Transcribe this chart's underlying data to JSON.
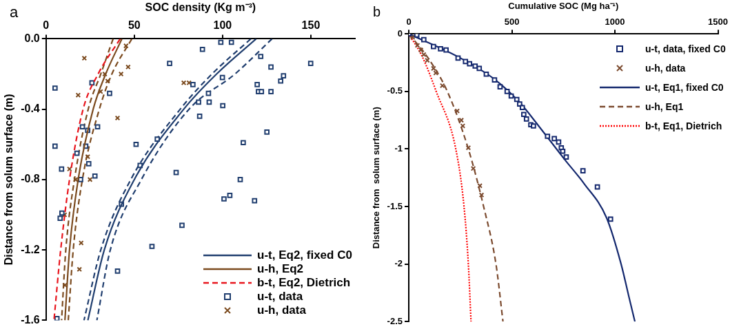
{
  "chart_data": [
    {
      "type": "scatter",
      "xlabel": "SOC density (Kg m⁻³)",
      "ylabel": "Distance from solum surface (m)",
      "annotations": [
        "a"
      ],
      "xlim": [
        0,
        175
      ],
      "xticks": [
        0,
        50,
        100,
        150
      ],
      "ylim": [
        -1.6,
        0
      ],
      "yticks": [
        {
          "value": 0,
          "label": "0.0"
        },
        -0.4,
        -0.8,
        -1.2,
        -1.6
      ],
      "legend": "bottom right",
      "series": [
        {
          "type": "line",
          "name": "u-t, Eq2, fixed C0",
          "color": "#1f3d6e",
          "marker": "none",
          "line_style": "solid",
          "x": [
            119,
            96.6,
            78,
            50,
            33,
            23.7
          ],
          "values": [
            0,
            -0.2,
            -0.4,
            -0.8,
            -1.2,
            -1.6
          ]
        },
        {
          "type": "line",
          "name": "u-h, Eq2",
          "color": "#7b4a1e",
          "marker": "none",
          "line_style": "solid",
          "x": [
            43,
            33.8,
            26.7,
            18.2,
            13.3,
            10.7
          ],
          "values": [
            0,
            -0.2,
            -0.4,
            -0.8,
            -1.2,
            -1.6
          ]
        },
        {
          "type": "line",
          "name": "b-t, Eq2, Dietrich",
          "color": "#e8141c",
          "marker": "none",
          "line_style": "dashed",
          "x": [
            42,
            29.5,
            21,
            13.3,
            8.3,
            4.5
          ],
          "values": [
            0,
            -0.2,
            -0.4,
            -0.8,
            -1.2,
            -1.6
          ]
        },
        {
          "type": "scatter",
          "name": "u-t, data",
          "color": "#1f3d6e",
          "marker": "square",
          "x": [
            5.1,
            26,
            36,
            70,
            20.6,
            23.6,
            29.2,
            5.1,
            22.5,
            17.5,
            51,
            63,
            8.8,
            24.2,
            53.3,
            73.7,
            19.6,
            27.7,
            42.7,
            9,
            8,
            77,
            60,
            40.5,
            6.2,
            99,
            105,
            88.6,
            121.6,
            149.9,
            127.4,
            99.9,
            134.5,
            132.9,
            83.2,
            119.6,
            120.3,
            122,
            127.4,
            92,
            86.4,
            92.4,
            100.1,
            87,
            125.1,
            111.7,
            110,
            100.8,
            104.1,
            118.1
          ],
          "values": [
            -0.28,
            -0.25,
            -0.31,
            -0.14,
            -0.5,
            -0.52,
            -0.5,
            -0.61,
            -0.61,
            -0.65,
            -0.6,
            -0.57,
            -0.74,
            -0.71,
            -0.72,
            -0.76,
            -0.8,
            -0.78,
            -0.94,
            -0.99,
            -1.02,
            -1.06,
            -1.18,
            -1.32,
            -1.59,
            -0.02,
            -0.02,
            -0.06,
            -0.1,
            -0.14,
            -0.16,
            -0.22,
            -0.21,
            -0.24,
            -0.26,
            -0.26,
            -0.3,
            -0.3,
            -0.3,
            -0.31,
            -0.36,
            -0.36,
            -0.38,
            -0.44,
            -0.53,
            -0.59,
            -0.8,
            -0.91,
            -0.89,
            -0.92
          ]
        },
        {
          "type": "scatter",
          "name": "u-h, data",
          "color": "#7b4a1e",
          "marker": "cross",
          "x": [
            45.3,
            21.7,
            46.5,
            33.3,
            34.9,
            42.5,
            78,
            81,
            18.2,
            30.9,
            40.5,
            23.6,
            13.3,
            16.8,
            24.9,
            10.5,
            19.9,
            18.9,
            10.7
          ],
          "values": [
            -0.04,
            -0.11,
            -0.16,
            -0.2,
            -0.24,
            -0.2,
            -0.25,
            -0.25,
            -0.32,
            -0.3,
            -0.45,
            -0.67,
            -0.74,
            -0.8,
            -0.8,
            -1,
            -1.16,
            -1.31,
            -1.4
          ]
        },
        {
          "type": "line",
          "color": "#1f3d6e",
          "marker": "none",
          "line_style": "dashed",
          "x": [
            116,
            94,
            76,
            48,
            31,
            21.5
          ],
          "values": [
            0,
            -0.2,
            -0.4,
            -0.8,
            -1.2,
            -1.6
          ]
        },
        {
          "type": "line",
          "color": "#1f3d6e",
          "marker": "none",
          "line_style": "dashed",
          "x": [
            128,
            107,
            81,
            54,
            36.4,
            28.8
          ],
          "values": [
            0,
            -0.2,
            -0.4,
            -0.8,
            -1.2,
            -1.6
          ]
        },
        {
          "type": "line",
          "color": "#7b4a1e",
          "marker": "none",
          "line_style": "dashed",
          "x": [
            38,
            31,
            23.9,
            16.1,
            11.2,
            8.8
          ],
          "values": [
            0,
            -0.2,
            -0.4,
            -0.8,
            -1.2,
            -1.6
          ]
        },
        {
          "type": "line",
          "color": "#7b4a1e",
          "marker": "none",
          "line_style": "dashed",
          "x": [
            48.6,
            37.3,
            30.2,
            20.6,
            15.4,
            12.6
          ],
          "values": [
            0,
            -0.2,
            -0.4,
            -0.8,
            -1.2,
            -1.6
          ]
        }
      ]
    },
    {
      "type": "scatter",
      "xlabel": "Cumulative SOC (Mg ha⁻¹)",
      "ylabel": "Distance from  solum surface (m)",
      "annotations": [
        "b"
      ],
      "xlim": [
        0,
        1500
      ],
      "xticks": [
        0,
        500,
        1000,
        1500
      ],
      "ylim": [
        -2.5,
        0
      ],
      "yticks": [
        0,
        -0.5,
        -1,
        -1.5,
        -2,
        -2.5
      ],
      "legend": "top right",
      "series": [
        {
          "type": "scatter",
          "name": "u-t, data, fixed C0",
          "color": "#14286e",
          "marker": "square",
          "x": [
            0,
            39,
            73,
            120,
            154,
            181,
            239,
            275,
            295,
            322,
            342,
            376,
            416,
            443,
            477,
            497,
            524,
            538,
            558,
            571,
            592,
            551,
            605,
            673,
            706,
            727,
            740,
            747,
            764,
            845,
            915,
            979
          ],
          "values": [
            0,
            -0.01,
            -0.05,
            -0.11,
            -0.13,
            -0.14,
            -0.21,
            -0.24,
            -0.26,
            -0.28,
            -0.3,
            -0.35,
            -0.4,
            -0.46,
            -0.5,
            -0.54,
            -0.57,
            -0.61,
            -0.7,
            -0.74,
            -0.79,
            -0.64,
            -0.8,
            -0.89,
            -0.91,
            -0.94,
            -0.99,
            -1.02,
            -1.07,
            -1.19,
            -1.33,
            -1.61
          ]
        },
        {
          "type": "scatter",
          "name": "u-h, data",
          "color": "#7b4a2e",
          "marker": "cross",
          "x": [
            19,
            42,
            59,
            73,
            90,
            120,
            131,
            163,
            235,
            255,
            262,
            289,
            313,
            345,
            353
          ],
          "values": [
            -0.03,
            -0.1,
            -0.14,
            -0.18,
            -0.23,
            -0.3,
            -0.34,
            -0.45,
            -0.67,
            -0.75,
            -0.8,
            -0.99,
            -1.17,
            -1.32,
            -1.4
          ]
        },
        {
          "type": "line",
          "name": "u-t, Eq1, fixed C0",
          "color": "#14286e",
          "marker": "none",
          "line_style": "solid",
          "x": [
            0,
            240,
            420,
            540,
            630,
            760,
            850,
            960,
            1030,
            1070,
            1097
          ],
          "values": [
            0,
            -0.2,
            -0.4,
            -0.6,
            -0.8,
            -1.1,
            -1.3,
            -1.6,
            -2,
            -2.3,
            -2.5
          ]
        },
        {
          "type": "line",
          "name": "u-h, Eq1",
          "color": "#7b4a2e",
          "marker": "none",
          "line_style": "dashed",
          "x": [
            0,
            90,
            187,
            289,
            363,
            423,
            457
          ],
          "values": [
            0,
            -0.2,
            -0.5,
            -1,
            -1.5,
            -2,
            -2.5
          ]
        },
        {
          "type": "line",
          "name": "b-t, Eq1, Dietrich",
          "color": "#ff0000",
          "marker": "none",
          "line_style": "dotted",
          "x": [
            0,
            66,
            133,
            228,
            268,
            289,
            302
          ],
          "values": [
            0,
            -0.2,
            -0.5,
            -1,
            -1.5,
            -2,
            -2.5
          ]
        }
      ]
    }
  ]
}
